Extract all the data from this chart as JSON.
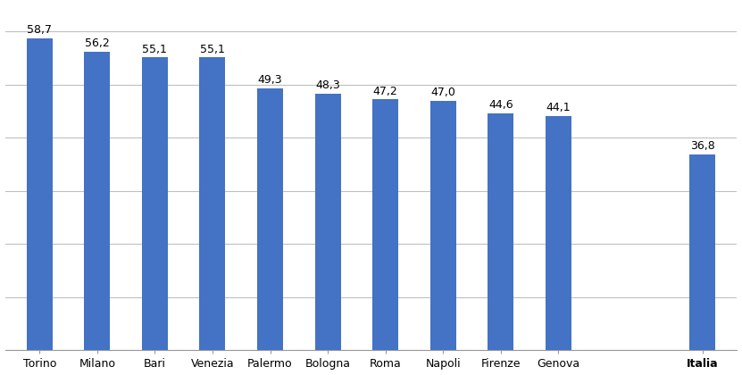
{
  "categories": [
    "Torino",
    "Milano",
    "Bari",
    "Venezia",
    "Palermo",
    "Bologna",
    "Roma",
    "Napoli",
    "Firenze",
    "Genova",
    "Italia"
  ],
  "values": [
    58.7,
    56.2,
    55.1,
    55.1,
    49.3,
    48.3,
    47.2,
    47.0,
    44.6,
    44.1,
    36.8
  ],
  "bar_color": "#4472C4",
  "ylim": [
    0,
    65
  ],
  "yticks": [
    0,
    10,
    20,
    30,
    40,
    50,
    60
  ],
  "label_fontsize": 9.0,
  "tick_fontsize": 9.0,
  "value_fontsize": 9.0,
  "background_color": "#FFFFFF",
  "grid_color": "#C0C0C0",
  "bar_width": 0.45,
  "italia_bold": true
}
